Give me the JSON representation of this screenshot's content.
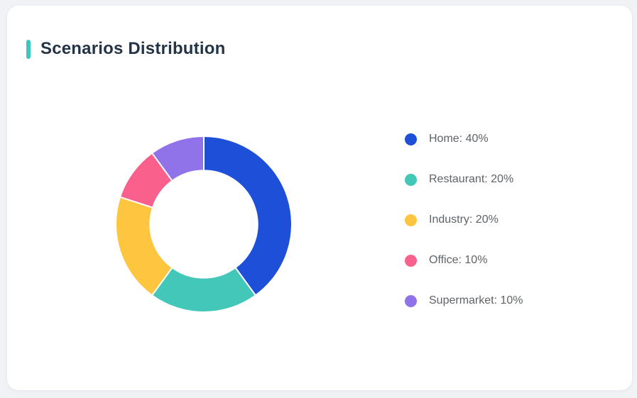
{
  "page": {
    "background": "#F0F2F5"
  },
  "card": {
    "title": "Scenarios Distribution",
    "accent_color": "#3EC6C0",
    "background": "#FFFFFF"
  },
  "chart_data": {
    "type": "pie",
    "variant": "donut",
    "title": "Scenarios Distribution",
    "categories": [
      "Home",
      "Restaurant",
      "Industry",
      "Office",
      "Supermarket"
    ],
    "values": [
      40,
      20,
      20,
      10,
      10
    ],
    "unit": "%",
    "colors": [
      "#1D4FD8",
      "#43C7B9",
      "#FEC53E",
      "#F9618C",
      "#9173E9"
    ],
    "start_angle_deg": -90,
    "direction": "clockwise",
    "inner_radius_ratio": 0.61,
    "segment_gap_color": "#FFFFFF",
    "legend": {
      "position": "right",
      "items": [
        {
          "label": "Home: 40%",
          "color": "#1D4FD8"
        },
        {
          "label": "Restaurant: 20%",
          "color": "#43C7B9"
        },
        {
          "label": "Industry: 20%",
          "color": "#FEC53E"
        },
        {
          "label": "Office: 10%",
          "color": "#F9618C"
        },
        {
          "label": "Supermarket: 10%",
          "color": "#9173E9"
        }
      ]
    }
  }
}
